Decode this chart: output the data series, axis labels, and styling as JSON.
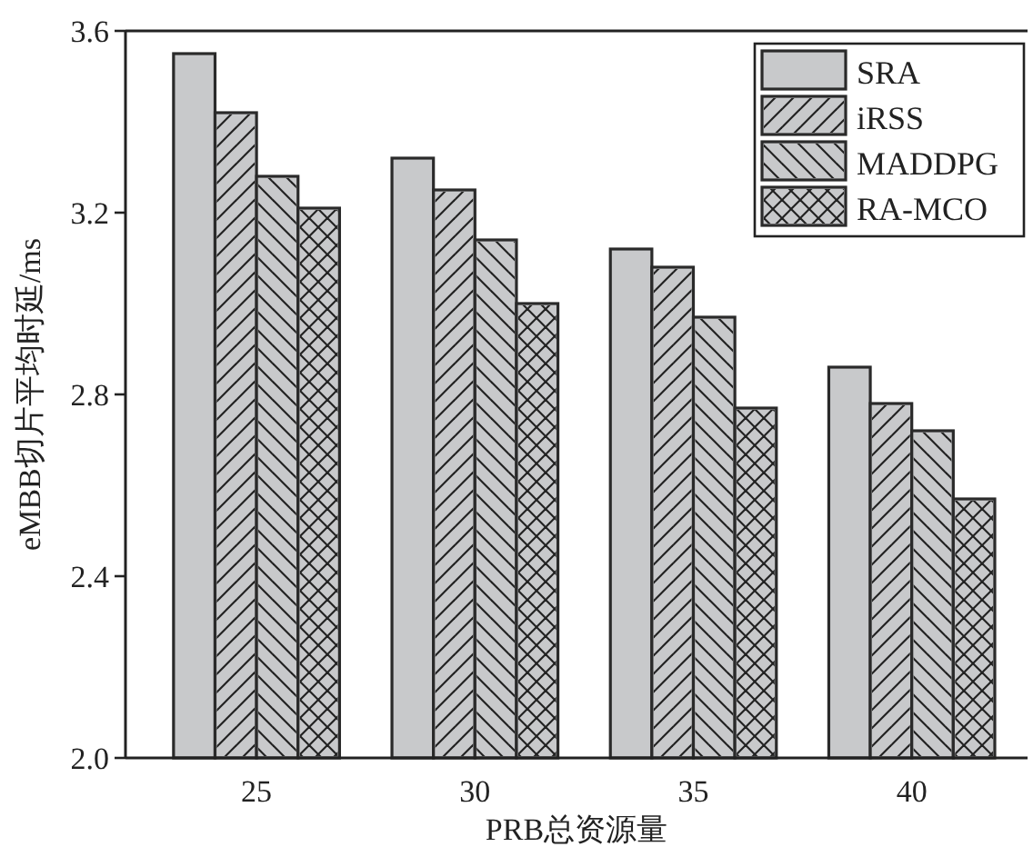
{
  "chart_data": {
    "type": "bar",
    "xlabel": "PRB总资源量",
    "ylabel": "eMBB切片平均时延/ms",
    "categories": [
      "25",
      "30",
      "35",
      "40"
    ],
    "series": [
      {
        "name": "SRA",
        "color": "#c8c9cb",
        "values": [
          3.55,
          3.32,
          3.12,
          2.86
        ]
      },
      {
        "name": "iRSS",
        "color": "#c8c9cb",
        "values": [
          3.42,
          3.25,
          3.08,
          2.78
        ]
      },
      {
        "name": "MADDPG",
        "color": "#c8c9cb",
        "values": [
          3.28,
          3.14,
          2.97,
          2.72
        ]
      },
      {
        "name": "RA-MCO",
        "color": "#c8c9cb",
        "values": [
          3.21,
          3.0,
          2.77,
          2.57
        ]
      }
    ],
    "ylim": [
      2.0,
      3.6
    ],
    "yticks": [
      {
        "value": 2.0,
        "label": "2.0"
      },
      2.4,
      2.8,
      3.2,
      3.6
    ],
    "legend": "top right"
  }
}
